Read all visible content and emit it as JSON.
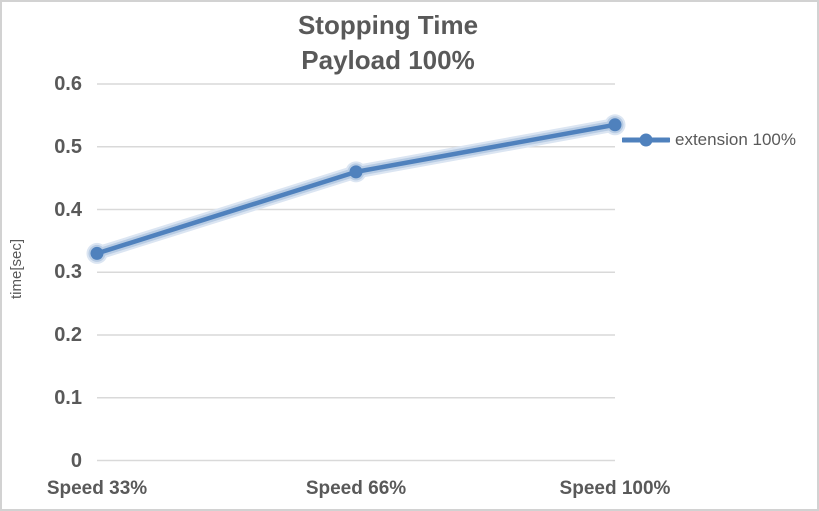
{
  "window": {
    "background": "#ffffff",
    "border_color": "#d2d2d2"
  },
  "chart_data": {
    "type": "line",
    "title": "Stopping Time",
    "subtitle": "Payload 100%",
    "categories": [
      "Speed 33%",
      "Speed 66%",
      "Speed 100%"
    ],
    "series": [
      {
        "name": "extension 100%",
        "values": [
          0.33,
          0.46,
          0.535
        ]
      }
    ],
    "xlabel": "",
    "ylabel": "time[sec]",
    "ylim": [
      0,
      0.6
    ],
    "ytick_step": 0.1,
    "ytick_labels": [
      "0",
      "0.1",
      "0.2",
      "0.3",
      "0.4",
      "0.5",
      "0.6"
    ],
    "grid": true,
    "legend_position": "right",
    "marker": "circle",
    "line_effect": "glow",
    "colors": {
      "line": "#4f81bd",
      "glow_mid": "#b8cce4",
      "glow_outer": "#dbe5f2",
      "gridline": "#d9d9d9",
      "text": "#595959"
    }
  }
}
